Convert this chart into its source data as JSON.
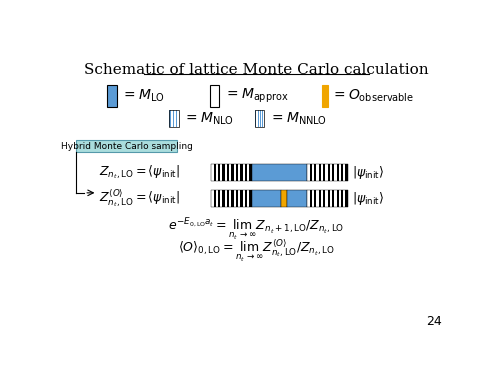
{
  "title": "Schematic of lattice Monte Carlo calculation",
  "bg_color": "#ffffff",
  "title_fontsize": 11,
  "slide_number": "24",
  "hybrid_text": "Hybrid Monte Carlo sampling",
  "mlo_color": "#5b9bd5",
  "mapprox_color": "#ffffff",
  "mobs_color": "#f0a500",
  "hybrid_box_face": "#aadddd",
  "hybrid_box_edge": "#5599aa"
}
